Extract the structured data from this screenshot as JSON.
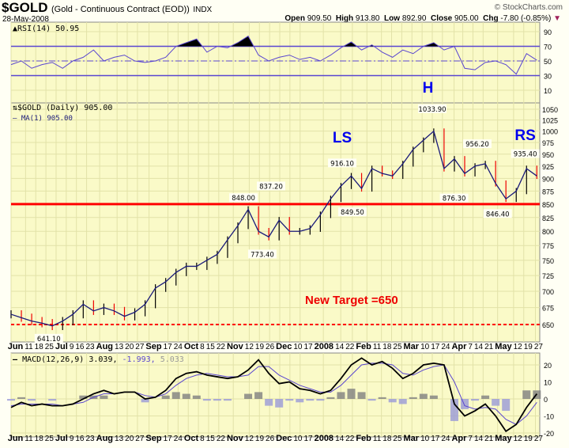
{
  "header": {
    "symbol": "$GOLD",
    "description": "(Gold - Continuous Contract (EOD))",
    "exchange": "INDX",
    "date": "28-May-2008",
    "brand": "© StockCharts.com",
    "open_label": "Open",
    "open": "909.50",
    "high_label": "High",
    "high": "913.80",
    "low_label": "Low",
    "low": "892.90",
    "close_label": "Close",
    "close": "905.00",
    "chg_label": "Chg",
    "chg": "-7.80 (-0.85%)",
    "chg_direction": "down"
  },
  "colors": {
    "panel_bg": "#fafac8",
    "grid": "#e2e2a8",
    "price_line": "#1a1a7a",
    "red_line": "#ff0000",
    "pattern_label": "#0000ee",
    "rsi_line": "#5a46d0",
    "macd_line": "#000000",
    "signal_line": "#5a46d0",
    "hist_pos": "#808080",
    "hist_neg": "#9a9ad8"
  },
  "chart_data": [
    {
      "type": "line",
      "panel": "rsi",
      "legend": "RSI(14) 50.95",
      "ylim": [
        0,
        100
      ],
      "yticks": [
        "90",
        "70",
        "50",
        "30",
        "10"
      ],
      "levels": [
        70,
        50,
        30
      ],
      "x_range": [
        "2007-06-01",
        "2008-05-28"
      ],
      "values": [
        45,
        50,
        40,
        45,
        48,
        40,
        50,
        55,
        65,
        50,
        55,
        58,
        50,
        48,
        50,
        55,
        70,
        75,
        80,
        62,
        70,
        68,
        75,
        84,
        58,
        50,
        55,
        58,
        52,
        55,
        50,
        58,
        68,
        76,
        65,
        72,
        62,
        55,
        65,
        60,
        70,
        75,
        65,
        70,
        40,
        38,
        48,
        50,
        45,
        32,
        60,
        51
      ]
    },
    {
      "type": "line",
      "panel": "price",
      "legend": "$GOLD (Daily) 905.00",
      "legend2": "MA(1) 905.00",
      "scale": "log",
      "ylim": [
        625,
        1060
      ],
      "yticks": [
        "1050",
        "1025",
        "1000",
        "975",
        "950",
        "925",
        "900",
        "875",
        "850",
        "825",
        "800",
        "775",
        "750",
        "725",
        "700",
        "675",
        "650"
      ],
      "x_range": [
        "2007-06-01",
        "2008-05-28"
      ],
      "values": [
        665,
        660,
        655,
        652,
        648,
        655,
        665,
        680,
        670,
        675,
        670,
        662,
        668,
        680,
        705,
        715,
        730,
        740,
        740,
        750,
        760,
        785,
        810,
        840,
        800,
        790,
        820,
        800,
        800,
        805,
        830,
        860,
        885,
        905,
        880,
        920,
        910,
        905,
        930,
        960,
        980,
        1000,
        920,
        940,
        910,
        925,
        930,
        890,
        860,
        875,
        920,
        905
      ],
      "annotations": [
        {
          "date": "2007-06-27",
          "value": 641.1,
          "label": "641.10",
          "pos": "below"
        },
        {
          "date": "2007-11-08",
          "value": 848.0,
          "label": "848.00",
          "pos": "above"
        },
        {
          "date": "2007-11-21",
          "value": 773.4,
          "label": "773.40",
          "pos": "below"
        },
        {
          "date": "2007-11-27",
          "value": 837.2,
          "label": "837.20",
          "pos": "above"
        },
        {
          "date": "2008-01-15",
          "value": 916.1,
          "label": "916.10",
          "pos": "above"
        },
        {
          "date": "2008-01-22",
          "value": 849.5,
          "label": "849.50",
          "pos": "below"
        },
        {
          "date": "2008-03-17",
          "value": 1033.9,
          "label": "1033.90",
          "pos": "above"
        },
        {
          "date": "2008-04-01",
          "value": 876.3,
          "label": "876.30",
          "pos": "below"
        },
        {
          "date": "2008-04-17",
          "value": 956.2,
          "label": "956.20",
          "pos": "above"
        },
        {
          "date": "2008-05-01",
          "value": 846.4,
          "label": "846.40",
          "pos": "below"
        },
        {
          "date": "2008-05-20",
          "value": 935.4,
          "label": "935.40",
          "pos": "above"
        }
      ],
      "lines": [
        {
          "value": 850,
          "style": "solid"
        },
        {
          "value": 650,
          "style": "dashed"
        }
      ],
      "pattern_labels": [
        {
          "text": "LS",
          "date": "2008-01-15",
          "value": 975
        },
        {
          "text": "H",
          "date": "2008-03-14",
          "value": 1090
        },
        {
          "text": "RS",
          "date": "2008-05-20",
          "value": 980
        }
      ],
      "target_text": "New Target =650"
    },
    {
      "type": "line",
      "panel": "macd",
      "legend": "MACD(12,26,9)",
      "legend_macd": "3.039,",
      "legend_signal": "-1.993,",
      "legend_hist": "5.033",
      "ylim": [
        -22,
        27
      ],
      "yticks": [
        "20",
        "10",
        "0",
        "-10",
        "-20"
      ],
      "x_range": [
        "2007-06-01",
        "2008-05-28"
      ],
      "macd": [
        -5,
        -2,
        -4,
        -3,
        -4,
        -4,
        -3,
        0,
        3,
        5,
        3,
        4,
        4,
        0,
        1,
        5,
        12,
        15,
        16,
        14,
        13,
        12,
        13,
        17,
        23,
        15,
        9,
        10,
        6,
        5,
        3,
        5,
        12,
        20,
        24,
        20,
        22,
        18,
        12,
        15,
        20,
        21,
        20,
        -3,
        -10,
        -7,
        -3,
        -10,
        -19,
        -15,
        -5,
        3
      ],
      "signal": [
        -4,
        -3,
        -3,
        -3,
        -3,
        -4,
        -3,
        -2,
        1,
        3,
        3,
        4,
        4,
        2,
        1,
        3,
        8,
        12,
        14,
        15,
        14,
        13,
        13,
        14,
        19,
        19,
        14,
        11,
        8,
        6,
        4,
        4,
        8,
        14,
        20,
        21,
        21,
        20,
        15,
        14,
        17,
        19,
        20,
        10,
        -4,
        -6,
        -5,
        -6,
        -12,
        -15,
        -10,
        -2
      ]
    }
  ],
  "x_ticks": [
    {
      "label": "Jun",
      "date": "2007-06-01",
      "bold": true
    },
    {
      "label": "11",
      "date": "2007-06-11"
    },
    {
      "label": "18",
      "date": "2007-06-18"
    },
    {
      "label": "25",
      "date": "2007-06-25"
    },
    {
      "label": "Jul",
      "date": "2007-07-02",
      "bold": true
    },
    {
      "label": "9",
      "date": "2007-07-09"
    },
    {
      "label": "16",
      "date": "2007-07-16"
    },
    {
      "label": "23",
      "date": "2007-07-23"
    },
    {
      "label": "Aug",
      "date": "2007-08-01",
      "bold": true
    },
    {
      "label": "13",
      "date": "2007-08-13"
    },
    {
      "label": "20",
      "date": "2007-08-20"
    },
    {
      "label": "27",
      "date": "2007-08-27"
    },
    {
      "label": "Sep",
      "date": "2007-09-04",
      "bold": true
    },
    {
      "label": "17",
      "date": "2007-09-17"
    },
    {
      "label": "24",
      "date": "2007-09-24"
    },
    {
      "label": "Oct",
      "date": "2007-10-01",
      "bold": true
    },
    {
      "label": "8",
      "date": "2007-10-08"
    },
    {
      "label": "15",
      "date": "2007-10-15"
    },
    {
      "label": "22",
      "date": "2007-10-22"
    },
    {
      "label": "Nov",
      "date": "2007-11-01",
      "bold": true
    },
    {
      "label": "12",
      "date": "2007-11-12"
    },
    {
      "label": "19",
      "date": "2007-11-19"
    },
    {
      "label": "26",
      "date": "2007-11-26"
    },
    {
      "label": "Dec",
      "date": "2007-12-03",
      "bold": true
    },
    {
      "label": "10",
      "date": "2007-12-10"
    },
    {
      "label": "17",
      "date": "2007-12-17"
    },
    {
      "label": "2008",
      "date": "2008-01-02",
      "bold": true
    },
    {
      "label": "14",
      "date": "2008-01-14"
    },
    {
      "label": "22",
      "date": "2008-01-22"
    },
    {
      "label": "Feb",
      "date": "2008-02-01",
      "bold": true
    },
    {
      "label": "11",
      "date": "2008-02-11"
    },
    {
      "label": "18",
      "date": "2008-02-18"
    },
    {
      "label": "25",
      "date": "2008-02-25"
    },
    {
      "label": "Mar",
      "date": "2008-03-03",
      "bold": true
    },
    {
      "label": "10",
      "date": "2008-03-10"
    },
    {
      "label": "17",
      "date": "2008-03-17"
    },
    {
      "label": "24",
      "date": "2008-03-24"
    },
    {
      "label": "Apr",
      "date": "2008-04-01",
      "bold": true
    },
    {
      "label": "7",
      "date": "2008-04-07"
    },
    {
      "label": "14",
      "date": "2008-04-14"
    },
    {
      "label": "21",
      "date": "2008-04-21"
    },
    {
      "label": "May",
      "date": "2008-05-01",
      "bold": true
    },
    {
      "label": "12",
      "date": "2008-05-12"
    },
    {
      "label": "19",
      "date": "2008-05-19"
    },
    {
      "label": "27",
      "date": "2008-05-27"
    }
  ]
}
